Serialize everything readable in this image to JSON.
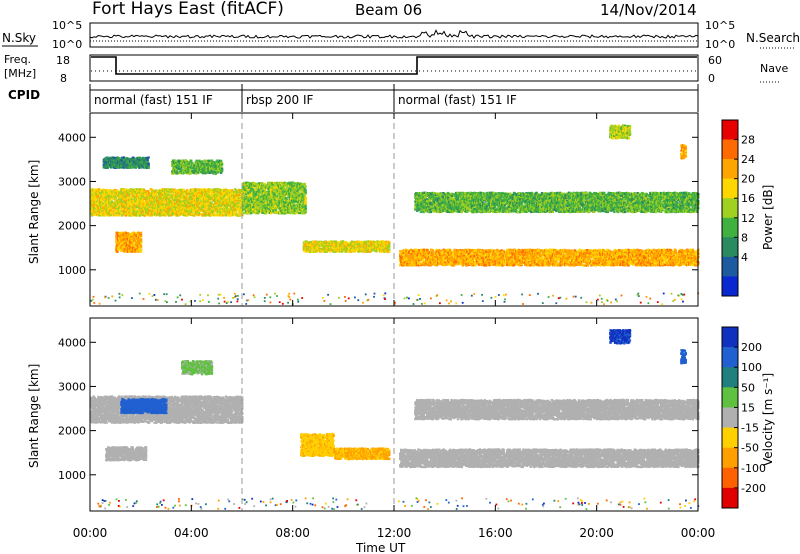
{
  "header": {
    "title": "Fort Hays East (fitACF)",
    "beam": "Beam 06",
    "date": "14/Nov/2014"
  },
  "top_panels": {
    "nsky_label": "N.Sky",
    "nsky_ticks": [
      "10^5",
      "10^0"
    ],
    "nsearch_label": "N.Search",
    "nsearch_ticks": [
      "10^5",
      "10^0"
    ],
    "freq_label_1": "Freq.",
    "freq_label_2": "[MHz]",
    "freq_ticks": [
      "18",
      "8"
    ],
    "nave_label": "Nave",
    "nave_ticks": [
      "60",
      "0"
    ],
    "cpid_label": "CPID",
    "cpid_segments": [
      {
        "label": "normal (fast) 151 IF",
        "start_hour": 0,
        "end_hour": 6
      },
      {
        "label": "rbsp 200 IF",
        "start_hour": 6,
        "end_hour": 12
      },
      {
        "label": "normal (fast) 151 IF",
        "start_hour": 12,
        "end_hour": 24
      }
    ]
  },
  "axes": {
    "ylabel": "Slant Range [km]",
    "yticks": [
      "4000",
      "3000",
      "2000",
      "1000"
    ],
    "xlabel": "Time UT",
    "xticks": [
      "00:00",
      "04:00",
      "08:00",
      "12:00",
      "16:00",
      "20:00",
      "00:00"
    ]
  },
  "colorbars": {
    "power": {
      "label": "Power [dB]",
      "ticks": [
        "28",
        "24",
        "20",
        "16",
        "12",
        "8",
        "4"
      ],
      "colors": [
        "#e60000",
        "#ff6a00",
        "#ffa500",
        "#ffd700",
        "#a0d020",
        "#40b040",
        "#2a8a60",
        "#1e5aa0",
        "#0a28d0"
      ]
    },
    "velocity": {
      "label": "Velocity [m s⁻¹]",
      "ticks": [
        "200",
        "100",
        "50",
        "15",
        "-15",
        "-50",
        "-100",
        "-200"
      ],
      "colors": [
        "#1030c0",
        "#2060d0",
        "#208080",
        "#60c040",
        "#b0b0b0",
        "#ffd000",
        "#ffa000",
        "#ff6000",
        "#e00000"
      ]
    }
  },
  "chart_data": [
    {
      "type": "heatmap",
      "name": "power",
      "xlabel": "Time UT",
      "ylabel": "Slant Range [km]",
      "colorbar_label": "Power [dB]",
      "xlim": [
        0,
        24
      ],
      "ylim": [
        180,
        4550
      ],
      "x_unit": "hours UT",
      "clim": [
        0,
        30
      ],
      "features": [
        {
          "t_start": 0,
          "t_end": 6,
          "r_center": 2550,
          "r_half": 300,
          "value": 18
        },
        {
          "t_start": 0.5,
          "t_end": 2.3,
          "r_center": 3450,
          "r_half": 120,
          "value": 8
        },
        {
          "t_start": 1.0,
          "t_end": 2.0,
          "r_center": 1650,
          "r_half": 220,
          "value": 22
        },
        {
          "t_start": 3.2,
          "t_end": 5.2,
          "r_center": 3350,
          "r_half": 150,
          "value": 12
        },
        {
          "t_start": 6,
          "t_end": 8.5,
          "r_center": 2650,
          "r_half": 350,
          "value": 14
        },
        {
          "t_start": 8.4,
          "t_end": 11.8,
          "r_center": 1550,
          "r_half": 120,
          "value": 18
        },
        {
          "t_start": 12.2,
          "t_end": 24,
          "r_center": 1300,
          "r_half": 180,
          "value": 22
        },
        {
          "t_start": 12.8,
          "t_end": 24,
          "r_center": 2550,
          "r_half": 220,
          "value": 12
        },
        {
          "t_start": 20.5,
          "t_end": 21.3,
          "r_center": 4150,
          "r_half": 150,
          "value": 16
        },
        {
          "t_start": 23.3,
          "t_end": 23.5,
          "r_center": 3700,
          "r_half": 150,
          "value": 22
        }
      ]
    },
    {
      "type": "heatmap",
      "name": "velocity",
      "xlabel": "Time UT",
      "ylabel": "Slant Range [km]",
      "colorbar_label": "Velocity [m s⁻¹]",
      "xlim": [
        0,
        24
      ],
      "ylim": [
        180,
        4550
      ],
      "x_unit": "hours UT",
      "clim": [
        -200,
        200
      ],
      "features": [
        {
          "t_start": 0,
          "t_end": 6,
          "r_center": 2500,
          "r_half": 300,
          "value": 0
        },
        {
          "t_start": 1.2,
          "t_end": 3.0,
          "r_center": 2580,
          "r_half": 160,
          "value": 150
        },
        {
          "t_start": 0.6,
          "t_end": 2.2,
          "r_center": 1500,
          "r_half": 150,
          "value": 0
        },
        {
          "t_start": 3.6,
          "t_end": 4.8,
          "r_center": 3450,
          "r_half": 150,
          "value": 40
        },
        {
          "t_start": 8.3,
          "t_end": 9.6,
          "r_center": 1700,
          "r_half": 250,
          "value": -60
        },
        {
          "t_start": 9.6,
          "t_end": 11.8,
          "r_center": 1500,
          "r_half": 120,
          "value": -80
        },
        {
          "t_start": 12.2,
          "t_end": 24,
          "r_center": 1400,
          "r_half": 200,
          "value": 0
        },
        {
          "t_start": 12.8,
          "t_end": 24,
          "r_center": 2500,
          "r_half": 220,
          "value": 0
        },
        {
          "t_start": 20.5,
          "t_end": 21.3,
          "r_center": 4150,
          "r_half": 150,
          "value": 180
        },
        {
          "t_start": 23.3,
          "t_end": 23.5,
          "r_center": 3700,
          "r_half": 150,
          "value": 150
        }
      ]
    }
  ]
}
